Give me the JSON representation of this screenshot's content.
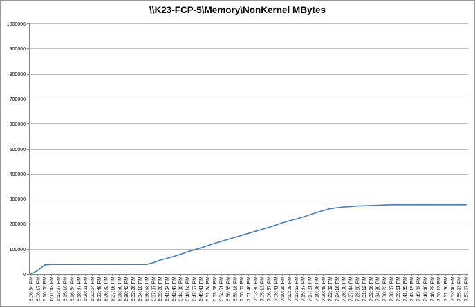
{
  "chart_data": {
    "type": "line",
    "title": "\\\\K23-FCP-5\\Memory\\NonKernel MBytes",
    "xlabel": "",
    "ylabel": "",
    "ylim": [
      0,
      1000000
    ],
    "y_ticks": [
      "0",
      "100000",
      "200000",
      "300000",
      "400000",
      "500000",
      "600000",
      "700000",
      "800000",
      "900000",
      "1000000"
    ],
    "grid": "horizontal",
    "legend": "none",
    "line_color": "#4a7ebb",
    "x_labels": [
      "6:06:34 PM",
      "6:08:17 PM",
      "6:10:00 PM",
      "6:11:43 PM",
      "6:13:27 PM",
      "6:15:10 PM",
      "6:16:54 PM",
      "6:18:37 PM",
      "6:20:21 PM",
      "6:22:04 PM",
      "6:23:48 PM",
      "6:25:32 PM",
      "6:27:15 PM",
      "6:28:59 PM",
      "6:30:42 PM",
      "6:32:26 PM",
      "6:34:10 PM",
      "6:35:53 PM",
      "6:37:37 PM",
      "6:39:20 PM",
      "6:41:04 PM",
      "6:42:47 PM",
      "6:44:30 PM",
      "6:46:14 PM",
      "6:47:57 PM",
      "6:49:41 PM",
      "6:51:24 PM",
      "6:53:08 PM",
      "6:54:51 PM",
      "6:56:35 PM",
      "6:58:18 PM",
      "7:00:02 PM",
      "7:01:46 PM",
      "7:03:30 PM",
      "7:05:13 PM",
      "7:06:57 PM",
      "7:08:41 PM",
      "7:10:25 PM",
      "7:12:09 PM",
      "7:13:53 PM",
      "7:15:37 PM",
      "7:17:21 PM",
      "7:19:05 PM",
      "7:20:48 PM",
      "7:22:32 PM",
      "7:24:16 PM",
      "7:26:00 PM",
      "7:27:44 PM",
      "7:29:28 PM",
      "7:31:12 PM",
      "7:32:56 PM",
      "7:34:39 PM",
      "7:36:23 PM",
      "7:38:07 PM",
      "7:39:51 PM",
      "7:41:35 PM",
      "7:43:19 PM",
      "7:45:02 PM",
      "7:46:46 PM",
      "7:48:29 PM",
      "7:50:13 PM",
      "7:51:56 PM",
      "7:53:40 PM",
      "7:55:23 PM",
      "7:57:07 PM"
    ],
    "series": [
      {
        "values": [
          0,
          14000,
          36000,
          38000,
          38000,
          38000,
          38000,
          38000,
          38000,
          38000,
          38000,
          38000,
          38000,
          38000,
          38000,
          38000,
          38000,
          38000,
          45000,
          55000,
          62000,
          70000,
          78000,
          88000,
          96000,
          104000,
          113000,
          122000,
          130000,
          138000,
          146000,
          154000,
          162000,
          170000,
          178000,
          186000,
          195000,
          204000,
          212000,
          219000,
          227000,
          236000,
          245000,
          253000,
          260000,
          264000,
          267000,
          269000,
          271000,
          272000,
          273000,
          274000,
          275000,
          276000,
          276000,
          276000,
          276000,
          276000,
          276000,
          276000,
          276000,
          276000,
          276000,
          276000,
          276000
        ]
      }
    ]
  }
}
